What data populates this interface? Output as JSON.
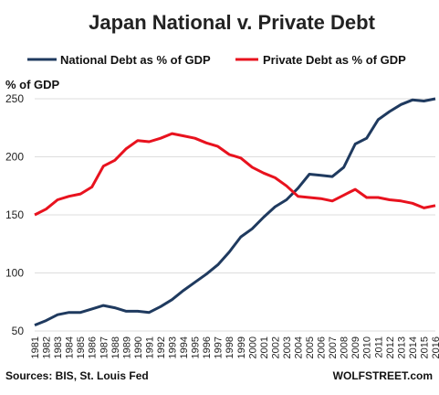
{
  "chart_data": {
    "type": "line",
    "title": "Japan National v. Private Debt",
    "ylabel": "% of GDP",
    "xlabel": "",
    "ylim": [
      50,
      250
    ],
    "yticks": [
      50,
      100,
      150,
      200,
      250
    ],
    "grid": true,
    "legend_position": "top",
    "categories": [
      "1981",
      "1982",
      "1983",
      "1984",
      "1985",
      "1986",
      "1987",
      "1988",
      "1989",
      "1990",
      "1991",
      "1992",
      "1993",
      "1994",
      "1995",
      "1996",
      "1997",
      "1998",
      "1999",
      "2000",
      "2001",
      "2002",
      "2003",
      "2004",
      "2005",
      "2006",
      "2007",
      "2008",
      "2009",
      "2010",
      "2011",
      "2012",
      "2013",
      "2014",
      "2015",
      "2016"
    ],
    "series": [
      {
        "name": "National Debt as % of GDP",
        "color": "#1f3a5f",
        "values": [
          55,
          59,
          64,
          66,
          66,
          69,
          72,
          70,
          67,
          67,
          66,
          71,
          77,
          85,
          92,
          99,
          107,
          118,
          131,
          138,
          148,
          157,
          163,
          173,
          185,
          184,
          183,
          191,
          211,
          216,
          232,
          239,
          245,
          249,
          248,
          250
        ]
      },
      {
        "name": "Private Debt as % of GDP",
        "color": "#e8121e",
        "values": [
          150,
          155,
          163,
          166,
          168,
          174,
          192,
          197,
          207,
          214,
          213,
          216,
          220,
          218,
          216,
          212,
          209,
          202,
          199,
          191,
          186,
          182,
          175,
          166,
          165,
          164,
          162,
          167,
          172,
          165,
          165,
          163,
          162,
          160,
          156,
          158
        ]
      }
    ],
    "source_text": "Sources: BIS, St. Louis Fed",
    "brand_text": "WOLFSTREET.com"
  }
}
